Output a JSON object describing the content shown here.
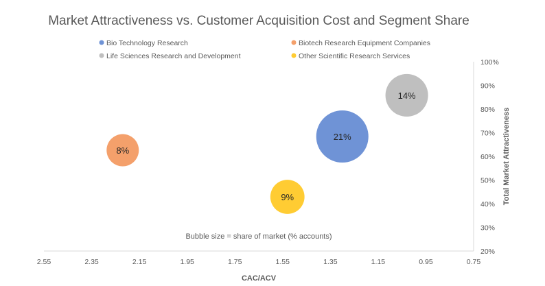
{
  "chart_data": {
    "type": "bubble",
    "title": "Market Attractiveness vs. Customer Acquisition Cost and Segment Share",
    "xlabel": "CAC/ACV",
    "ylabel": "Total Market Attractiveness",
    "annotation": "Bubble size = share of market (% accounts)",
    "xlim": [
      2.55,
      0.75
    ],
    "x_reversed": true,
    "ylim": [
      0.2,
      1.0
    ],
    "x_ticks": [
      "2.55",
      "2.35",
      "2.15",
      "1.95",
      "1.75",
      "1.55",
      "1.35",
      "1.15",
      "0.95",
      "0.75"
    ],
    "y_ticks": [
      "20%",
      "30%",
      "40%",
      "50%",
      "60%",
      "70%",
      "80%",
      "90%",
      "100%"
    ],
    "grid": false,
    "legend_position": "top",
    "series": [
      {
        "name": "Bio Technology Research",
        "x": 1.3,
        "y": 0.684,
        "size": 21,
        "label": "21%",
        "color": "#6F93D6"
      },
      {
        "name": "Biotech Research Equipment Companies",
        "x": 2.22,
        "y": 0.626,
        "size": 8,
        "label": "8%",
        "color": "#F4A06B"
      },
      {
        "name": "Life Sciences Research and Development",
        "x": 1.03,
        "y": 0.858,
        "size": 14,
        "label": "14%",
        "color": "#BFBFBF"
      },
      {
        "name": "Other Scientific Research Services",
        "x": 1.53,
        "y": 0.429,
        "size": 9,
        "label": "9%",
        "color": "#FFCC33"
      }
    ]
  }
}
